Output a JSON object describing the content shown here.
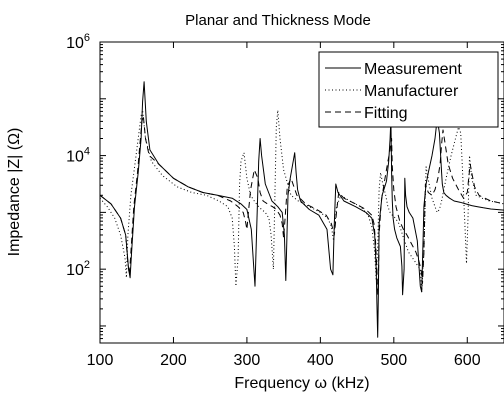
{
  "chart_data": {
    "type": "line",
    "title": "Planar and Thickness Mode",
    "xlabel": "Frequency ω (kHz)",
    "ylabel": "Impedance |Z| (Ω)",
    "xlim": [
      100,
      650
    ],
    "ylim_log10": [
      0.7,
      6
    ],
    "yscale": "log",
    "grid": false,
    "legend_position": "top-right",
    "x_ticks": [
      {
        "value": 100,
        "label": "100"
      },
      {
        "value": 200,
        "label": "200"
      },
      {
        "value": 300,
        "label": "300"
      },
      {
        "value": 400,
        "label": "400"
      },
      {
        "value": 500,
        "label": "500"
      },
      {
        "value": 600,
        "label": "600"
      }
    ],
    "y_ticks": [
      {
        "exp": 2,
        "base": "10",
        "sup": "2"
      },
      {
        "exp": 4,
        "base": "10",
        "sup": "4"
      },
      {
        "exp": 6,
        "base": "10",
        "sup": "6"
      }
    ],
    "series": [
      {
        "name": "Measurement",
        "style": "solid",
        "color": "#000000",
        "x": [
          100,
          115,
          128,
          135,
          139,
          141,
          143,
          147,
          152,
          156,
          158,
          160,
          163,
          168,
          180,
          200,
          220,
          240,
          260,
          280,
          292,
          300,
          306,
          309,
          311,
          313,
          316,
          318,
          320,
          325,
          334,
          342,
          348,
          351,
          353,
          356,
          359,
          363,
          365,
          367,
          369,
          373,
          385,
          398,
          409,
          414,
          417,
          419,
          421,
          424,
          432,
          448,
          462,
          470,
          474,
          476,
          477,
          478,
          479,
          480,
          484,
          490,
          493,
          495,
          496,
          497,
          498,
          499,
          501,
          504,
          509,
          511,
          512,
          514,
          515,
          516,
          518,
          521,
          526,
          532,
          536,
          538,
          540,
          541,
          542,
          544,
          547,
          552,
          556,
          559,
          562,
          564,
          565,
          566,
          568,
          571,
          576,
          582,
          590,
          598,
          606,
          614,
          622,
          632,
          640,
          650
        ],
        "y": [
          3.3,
          3.15,
          2.9,
          2.6,
          2.0,
          1.85,
          2.3,
          3.1,
          3.7,
          4.3,
          4.95,
          5.3,
          4.6,
          4.1,
          3.85,
          3.6,
          3.45,
          3.35,
          3.3,
          3.25,
          3.15,
          3.05,
          2.7,
          2.1,
          1.7,
          2.6,
          3.9,
          4.3,
          4.0,
          3.5,
          3.2,
          3.1,
          3.0,
          2.6,
          1.8,
          3.3,
          3.6,
          3.9,
          4.05,
          3.7,
          3.4,
          3.2,
          3.05,
          2.95,
          2.7,
          2.0,
          1.9,
          2.8,
          3.5,
          3.35,
          3.2,
          3.1,
          3.0,
          2.9,
          2.6,
          2.0,
          1.4,
          0.8,
          1.6,
          2.8,
          3.3,
          3.55,
          3.9,
          4.3,
          4.65,
          3.7,
          3.2,
          2.9,
          2.7,
          2.55,
          2.4,
          2.05,
          1.55,
          2.0,
          3.6,
          3.3,
          3.1,
          3.0,
          2.9,
          2.5,
          1.7,
          1.6,
          2.6,
          3.1,
          3.25,
          3.5,
          3.7,
          4.0,
          4.3,
          4.65,
          4.4,
          3.95,
          3.7,
          3.5,
          3.35,
          3.3,
          3.25,
          3.2,
          3.18,
          3.15,
          3.12,
          3.1,
          3.08,
          3.06,
          3.05,
          3.04
        ]
      },
      {
        "name": "Manufacturer",
        "style": "dotted",
        "color": "#000000",
        "x": [
          100,
          110,
          120,
          128,
          134,
          136,
          138,
          142,
          148,
          152,
          156,
          158,
          162,
          170,
          185,
          205,
          225,
          245,
          262,
          274,
          280,
          283,
          285,
          288,
          290,
          292,
          296,
          300,
          305,
          310,
          313,
          316,
          320,
          325,
          330,
          333,
          336,
          338,
          340,
          342,
          345,
          350,
          360,
          370,
          385,
          400,
          410,
          415,
          418,
          422,
          428,
          440,
          455,
          465,
          470,
          474,
          476,
          478,
          480,
          482,
          485,
          489,
          492,
          495,
          498,
          502,
          507,
          512,
          520,
          528,
          533,
          536,
          538,
          541,
          544,
          548,
          552,
          556,
          559,
          562,
          565,
          568,
          572,
          578,
          584,
          588,
          591,
          593,
          595,
          597,
          599,
          601,
          603,
          606,
          612,
          620,
          630,
          640,
          650
        ],
        "y": [
          3.25,
          3.1,
          2.9,
          2.6,
          2.2,
          1.85,
          2.6,
          3.3,
          3.9,
          4.3,
          4.7,
          4.8,
          4.3,
          3.9,
          3.65,
          3.45,
          3.35,
          3.3,
          3.2,
          3.1,
          2.9,
          2.4,
          1.7,
          2.2,
          3.5,
          3.9,
          4.05,
          3.6,
          3.3,
          3.2,
          3.15,
          3.1,
          3.05,
          3.0,
          2.9,
          2.6,
          2.0,
          3.2,
          4.5,
          4.8,
          4.3,
          3.75,
          3.3,
          3.2,
          3.1,
          3.0,
          2.9,
          2.75,
          2.5,
          3.1,
          3.3,
          3.2,
          3.1,
          2.95,
          2.75,
          2.3,
          1.8,
          2.4,
          3.4,
          3.7,
          3.5,
          3.3,
          3.1,
          3.0,
          2.95,
          2.9,
          2.8,
          2.6,
          2.3,
          2.15,
          2.05,
          2.0,
          1.6,
          2.3,
          3.8,
          3.5,
          3.25,
          3.1,
          3.0,
          3.05,
          3.2,
          3.4,
          3.65,
          4.0,
          4.3,
          4.5,
          4.4,
          3.9,
          3.3,
          2.7,
          2.1,
          2.9,
          4.0,
          3.6,
          3.3,
          3.25,
          3.2,
          3.18,
          3.15
        ]
      },
      {
        "name": "Fitting",
        "style": "dashed",
        "color": "#000000",
        "x": [
          100,
          115,
          128,
          135,
          138,
          140,
          142,
          146,
          151,
          155,
          157,
          159,
          162,
          167,
          180,
          200,
          220,
          240,
          260,
          278,
          288,
          295,
          298,
          300,
          302,
          305,
          310,
          315,
          318,
          322,
          328,
          335,
          340,
          345,
          348,
          350,
          352,
          355,
          360,
          368,
          380,
          395,
          408,
          415,
          419,
          422,
          425,
          432,
          448,
          462,
          470,
          473,
          475,
          477,
          478,
          479,
          480,
          483,
          488,
          492,
          495,
          497,
          498,
          500,
          503,
          508,
          513,
          518,
          524,
          530,
          534,
          537,
          539,
          541,
          543,
          547,
          552,
          556,
          560,
          563,
          565,
          567,
          570,
          574,
          580,
          588,
          595,
          600,
          602,
          604,
          606,
          610,
          616,
          624,
          632,
          640,
          650
        ],
        "y": [
          3.3,
          3.15,
          2.9,
          2.6,
          2.1,
          1.9,
          2.3,
          3.1,
          3.7,
          4.3,
          4.6,
          4.7,
          4.3,
          4.0,
          3.85,
          3.6,
          3.45,
          3.35,
          3.3,
          3.2,
          3.1,
          3.0,
          2.85,
          2.7,
          3.0,
          3.4,
          3.75,
          3.6,
          3.35,
          3.2,
          3.15,
          3.1,
          3.05,
          2.95,
          2.8,
          2.55,
          2.9,
          3.45,
          3.6,
          3.3,
          3.15,
          3.05,
          2.95,
          2.8,
          2.6,
          3.0,
          3.35,
          3.25,
          3.15,
          3.05,
          2.95,
          2.8,
          2.5,
          2.0,
          1.55,
          1.8,
          2.6,
          3.2,
          3.6,
          3.9,
          4.1,
          4.3,
          3.8,
          3.4,
          3.1,
          2.85,
          2.7,
          2.6,
          2.45,
          2.3,
          2.15,
          2.0,
          1.75,
          2.3,
          3.5,
          3.35,
          3.3,
          3.4,
          3.6,
          3.85,
          4.2,
          4.45,
          4.2,
          3.85,
          3.6,
          3.4,
          3.25,
          3.35,
          3.6,
          3.85,
          3.7,
          3.45,
          3.3,
          3.25,
          3.2,
          3.18,
          3.15
        ]
      }
    ]
  }
}
